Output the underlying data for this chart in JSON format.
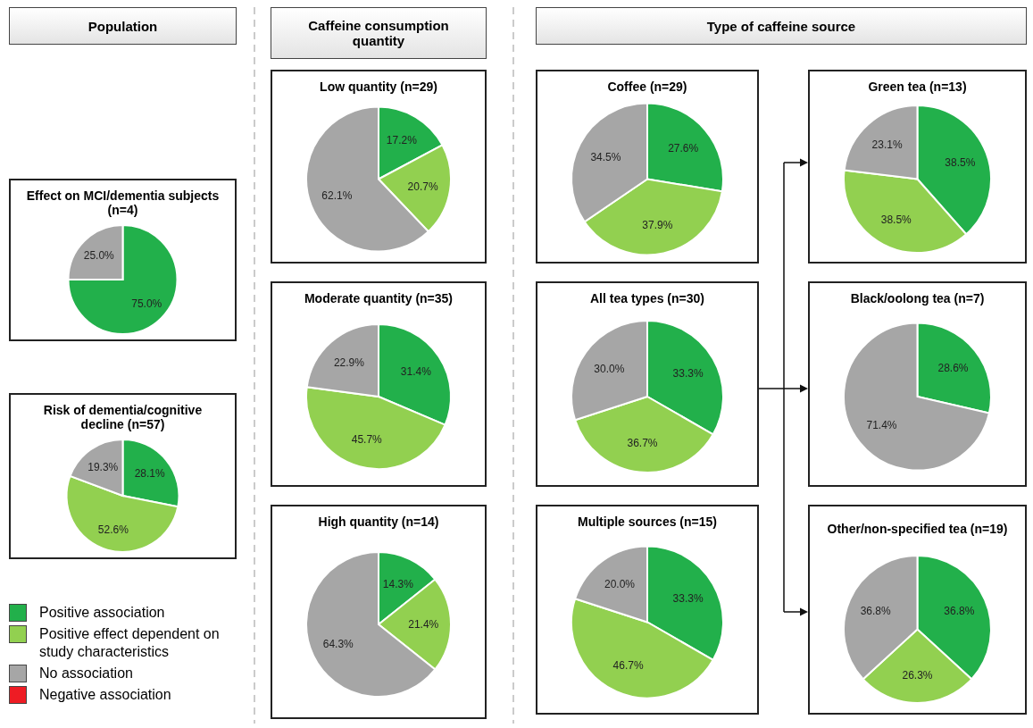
{
  "chart_data": [
    {
      "type": "other",
      "annotations": [
        "Population",
        "Caffeine consumption quantity",
        "Type of caffeine source"
      ]
    },
    {
      "type": "pie",
      "title": "Effect on MCI/dementia subjects (n=4)",
      "values": [
        75.0,
        25.0
      ],
      "colors": [
        "#22b04b",
        "#a6a6a6"
      ],
      "value_labels": [
        "75.0%",
        "25.0%"
      ]
    },
    {
      "type": "pie",
      "title": "Risk of dementia/cognitive decline (n=57)",
      "categories": [
        "Positive association",
        "Positive effect dependent on study characteristics",
        "No association",
        "Negative association"
      ],
      "values": [
        28.1,
        52.6,
        19.3,
        0
      ],
      "colors": [
        "#22b04b",
        "#92d050",
        "#a6a6a6",
        "#ee1c24"
      ],
      "value_labels": [
        "28.1%",
        "52.6%",
        "19.3%",
        null
      ],
      "legend": "bottom"
    },
    {
      "type": "pie",
      "title": "Low quantity (n=29)",
      "values": [
        17.2,
        20.7,
        62.1
      ],
      "colors": [
        "#22b04b",
        "#92d050",
        "#a6a6a6"
      ],
      "value_labels": [
        "17.2%",
        "20.7%",
        "62.1%"
      ]
    },
    {
      "type": "pie",
      "title": "Moderate quantity (n=35)",
      "values": [
        31.4,
        45.7,
        22.9
      ],
      "colors": [
        "#22b04b",
        "#92d050",
        "#a6a6a6"
      ],
      "value_labels": [
        "31.4%",
        "45.7%",
        "22.9%"
      ]
    },
    {
      "type": "pie",
      "title": "High quantity (n=14)",
      "values": [
        14.3,
        21.4,
        64.3
      ],
      "colors": [
        "#22b04b",
        "#92d050",
        "#a6a6a6"
      ],
      "value_labels": [
        "14.3%",
        "21.4%",
        "64.3%"
      ]
    },
    {
      "type": "pie",
      "title": "Coffee (n=29)",
      "values": [
        27.6,
        37.9,
        34.5
      ],
      "colors": [
        "#22b04b",
        "#92d050",
        "#a6a6a6"
      ],
      "value_labels": [
        "27.6%",
        "37.9%",
        "34.5%"
      ]
    },
    {
      "type": "pie",
      "title": "Green tea (n=13)",
      "values": [
        38.5,
        38.5,
        23.1
      ],
      "colors": [
        "#22b04b",
        "#92d050",
        "#a6a6a6"
      ],
      "value_labels": [
        "38.5%",
        "38.5%",
        "23.1%"
      ]
    },
    {
      "type": "pie",
      "title": "All tea types (n=30)",
      "values": [
        33.3,
        36.7,
        30.0
      ],
      "colors": [
        "#22b04b",
        "#92d050",
        "#a6a6a6"
      ],
      "value_labels": [
        "33.3%",
        "36.7%",
        "30.0%"
      ]
    },
    {
      "type": "pie",
      "title": "Black/oolong tea (n=7)",
      "values": [
        28.6,
        71.4
      ],
      "colors": [
        "#22b04b",
        "#a6a6a6"
      ],
      "value_labels": [
        "28.6%",
        "71.4%"
      ]
    },
    {
      "type": "pie",
      "title": "Multiple sources (n=15)",
      "values": [
        33.3,
        46.7,
        20.0
      ],
      "colors": [
        "#22b04b",
        "#92d050",
        "#a6a6a6"
      ],
      "value_labels": [
        "33.3%",
        "46.7%",
        "20.0%"
      ]
    },
    {
      "type": "pie",
      "title": "Other/non-specified tea (n=19)",
      "values": [
        36.8,
        26.3,
        36.8
      ],
      "colors": [
        "#22b04b",
        "#92d050",
        "#a6a6a6"
      ],
      "value_labels": [
        "36.8%",
        "26.3%",
        "36.8%"
      ]
    }
  ]
}
